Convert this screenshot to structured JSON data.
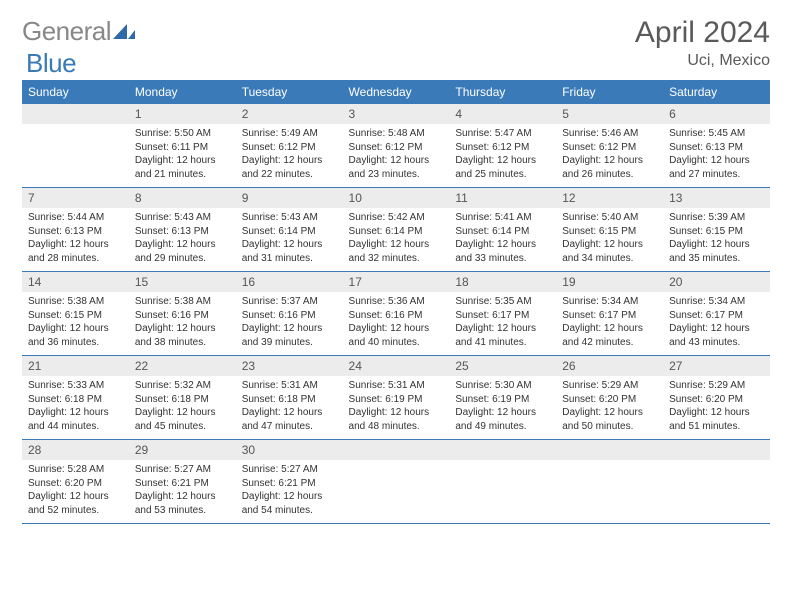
{
  "logo": {
    "general": "General",
    "blue": "Blue"
  },
  "header": {
    "month_title": "April 2024",
    "location": "Uci, Mexico"
  },
  "colors": {
    "header_bg": "#3a7ab8",
    "header_text": "#ffffff",
    "daynum_bg": "#ececec",
    "daynum_text": "#555555",
    "body_text": "#333333",
    "rule": "#3a7ab8"
  },
  "day_names": [
    "Sunday",
    "Monday",
    "Tuesday",
    "Wednesday",
    "Thursday",
    "Friday",
    "Saturday"
  ],
  "weeks": [
    [
      null,
      {
        "n": "1",
        "sr": "Sunrise: 5:50 AM",
        "ss": "Sunset: 6:11 PM",
        "d1": "Daylight: 12 hours",
        "d2": "and 21 minutes."
      },
      {
        "n": "2",
        "sr": "Sunrise: 5:49 AM",
        "ss": "Sunset: 6:12 PM",
        "d1": "Daylight: 12 hours",
        "d2": "and 22 minutes."
      },
      {
        "n": "3",
        "sr": "Sunrise: 5:48 AM",
        "ss": "Sunset: 6:12 PM",
        "d1": "Daylight: 12 hours",
        "d2": "and 23 minutes."
      },
      {
        "n": "4",
        "sr": "Sunrise: 5:47 AM",
        "ss": "Sunset: 6:12 PM",
        "d1": "Daylight: 12 hours",
        "d2": "and 25 minutes."
      },
      {
        "n": "5",
        "sr": "Sunrise: 5:46 AM",
        "ss": "Sunset: 6:12 PM",
        "d1": "Daylight: 12 hours",
        "d2": "and 26 minutes."
      },
      {
        "n": "6",
        "sr": "Sunrise: 5:45 AM",
        "ss": "Sunset: 6:13 PM",
        "d1": "Daylight: 12 hours",
        "d2": "and 27 minutes."
      }
    ],
    [
      {
        "n": "7",
        "sr": "Sunrise: 5:44 AM",
        "ss": "Sunset: 6:13 PM",
        "d1": "Daylight: 12 hours",
        "d2": "and 28 minutes."
      },
      {
        "n": "8",
        "sr": "Sunrise: 5:43 AM",
        "ss": "Sunset: 6:13 PM",
        "d1": "Daylight: 12 hours",
        "d2": "and 29 minutes."
      },
      {
        "n": "9",
        "sr": "Sunrise: 5:43 AM",
        "ss": "Sunset: 6:14 PM",
        "d1": "Daylight: 12 hours",
        "d2": "and 31 minutes."
      },
      {
        "n": "10",
        "sr": "Sunrise: 5:42 AM",
        "ss": "Sunset: 6:14 PM",
        "d1": "Daylight: 12 hours",
        "d2": "and 32 minutes."
      },
      {
        "n": "11",
        "sr": "Sunrise: 5:41 AM",
        "ss": "Sunset: 6:14 PM",
        "d1": "Daylight: 12 hours",
        "d2": "and 33 minutes."
      },
      {
        "n": "12",
        "sr": "Sunrise: 5:40 AM",
        "ss": "Sunset: 6:15 PM",
        "d1": "Daylight: 12 hours",
        "d2": "and 34 minutes."
      },
      {
        "n": "13",
        "sr": "Sunrise: 5:39 AM",
        "ss": "Sunset: 6:15 PM",
        "d1": "Daylight: 12 hours",
        "d2": "and 35 minutes."
      }
    ],
    [
      {
        "n": "14",
        "sr": "Sunrise: 5:38 AM",
        "ss": "Sunset: 6:15 PM",
        "d1": "Daylight: 12 hours",
        "d2": "and 36 minutes."
      },
      {
        "n": "15",
        "sr": "Sunrise: 5:38 AM",
        "ss": "Sunset: 6:16 PM",
        "d1": "Daylight: 12 hours",
        "d2": "and 38 minutes."
      },
      {
        "n": "16",
        "sr": "Sunrise: 5:37 AM",
        "ss": "Sunset: 6:16 PM",
        "d1": "Daylight: 12 hours",
        "d2": "and 39 minutes."
      },
      {
        "n": "17",
        "sr": "Sunrise: 5:36 AM",
        "ss": "Sunset: 6:16 PM",
        "d1": "Daylight: 12 hours",
        "d2": "and 40 minutes."
      },
      {
        "n": "18",
        "sr": "Sunrise: 5:35 AM",
        "ss": "Sunset: 6:17 PM",
        "d1": "Daylight: 12 hours",
        "d2": "and 41 minutes."
      },
      {
        "n": "19",
        "sr": "Sunrise: 5:34 AM",
        "ss": "Sunset: 6:17 PM",
        "d1": "Daylight: 12 hours",
        "d2": "and 42 minutes."
      },
      {
        "n": "20",
        "sr": "Sunrise: 5:34 AM",
        "ss": "Sunset: 6:17 PM",
        "d1": "Daylight: 12 hours",
        "d2": "and 43 minutes."
      }
    ],
    [
      {
        "n": "21",
        "sr": "Sunrise: 5:33 AM",
        "ss": "Sunset: 6:18 PM",
        "d1": "Daylight: 12 hours",
        "d2": "and 44 minutes."
      },
      {
        "n": "22",
        "sr": "Sunrise: 5:32 AM",
        "ss": "Sunset: 6:18 PM",
        "d1": "Daylight: 12 hours",
        "d2": "and 45 minutes."
      },
      {
        "n": "23",
        "sr": "Sunrise: 5:31 AM",
        "ss": "Sunset: 6:18 PM",
        "d1": "Daylight: 12 hours",
        "d2": "and 47 minutes."
      },
      {
        "n": "24",
        "sr": "Sunrise: 5:31 AM",
        "ss": "Sunset: 6:19 PM",
        "d1": "Daylight: 12 hours",
        "d2": "and 48 minutes."
      },
      {
        "n": "25",
        "sr": "Sunrise: 5:30 AM",
        "ss": "Sunset: 6:19 PM",
        "d1": "Daylight: 12 hours",
        "d2": "and 49 minutes."
      },
      {
        "n": "26",
        "sr": "Sunrise: 5:29 AM",
        "ss": "Sunset: 6:20 PM",
        "d1": "Daylight: 12 hours",
        "d2": "and 50 minutes."
      },
      {
        "n": "27",
        "sr": "Sunrise: 5:29 AM",
        "ss": "Sunset: 6:20 PM",
        "d1": "Daylight: 12 hours",
        "d2": "and 51 minutes."
      }
    ],
    [
      {
        "n": "28",
        "sr": "Sunrise: 5:28 AM",
        "ss": "Sunset: 6:20 PM",
        "d1": "Daylight: 12 hours",
        "d2": "and 52 minutes."
      },
      {
        "n": "29",
        "sr": "Sunrise: 5:27 AM",
        "ss": "Sunset: 6:21 PM",
        "d1": "Daylight: 12 hours",
        "d2": "and 53 minutes."
      },
      {
        "n": "30",
        "sr": "Sunrise: 5:27 AM",
        "ss": "Sunset: 6:21 PM",
        "d1": "Daylight: 12 hours",
        "d2": "and 54 minutes."
      },
      null,
      null,
      null,
      null
    ]
  ]
}
